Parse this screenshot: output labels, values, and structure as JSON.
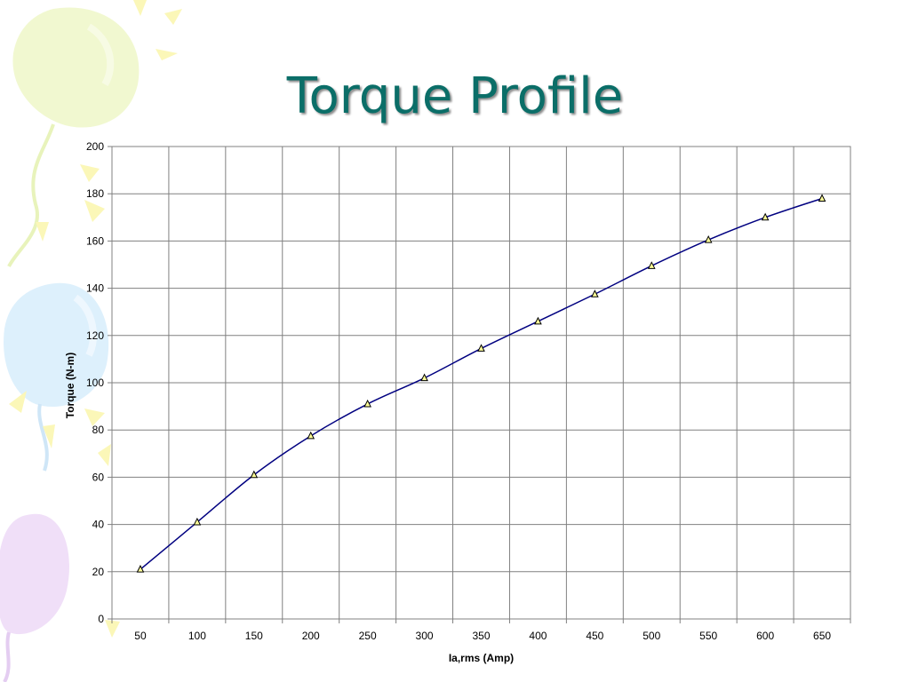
{
  "slide": {
    "title": "Torque Profile"
  },
  "chart_data": {
    "type": "line",
    "title": "Torque Profile",
    "xlabel": "Ia,rms (Amp)",
    "ylabel": "Torque (N-m)",
    "x": [
      50,
      100,
      150,
      200,
      250,
      300,
      350,
      400,
      450,
      500,
      550,
      600,
      650
    ],
    "series": [
      {
        "values": [
          21,
          41,
          61,
          77.5,
          91,
          102,
          114.5,
          126,
          137.5,
          149.5,
          160.5,
          170,
          178
        ],
        "color": "#000080",
        "marker": "triangle",
        "marker_color": "#ffff99"
      }
    ],
    "xlim": [
      25,
      675
    ],
    "ylim": [
      0,
      200
    ],
    "yticks": [
      0,
      20,
      40,
      60,
      80,
      100,
      120,
      140,
      160,
      180,
      200
    ],
    "grid": true,
    "legend": "none"
  }
}
